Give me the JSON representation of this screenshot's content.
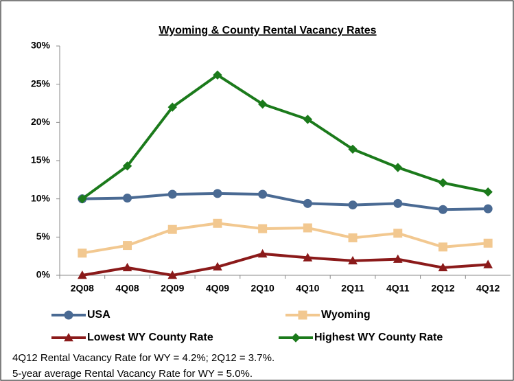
{
  "chart_data": {
    "type": "line",
    "title": "Wyoming & County Rental Vacancy Rates",
    "categories": [
      "2Q08",
      "4Q08",
      "2Q09",
      "4Q09",
      "2Q10",
      "4Q10",
      "2Q11",
      "4Q11",
      "2Q12",
      "4Q12"
    ],
    "series": [
      {
        "name": "USA",
        "color": "#4a6a93",
        "marker": "circle",
        "values": [
          10.0,
          10.1,
          10.6,
          10.7,
          10.6,
          9.4,
          9.2,
          9.4,
          8.6,
          8.7
        ]
      },
      {
        "name": "Wyoming",
        "color": "#f2c890",
        "marker": "square",
        "values": [
          2.9,
          3.9,
          6.0,
          6.8,
          6.1,
          6.2,
          4.9,
          5.5,
          3.7,
          4.2
        ]
      },
      {
        "name": "Lowest WY County Rate",
        "color": "#8b1a1a",
        "marker": "triangle",
        "values": [
          0,
          1.0,
          0,
          1.1,
          2.8,
          2.3,
          1.9,
          2.1,
          1.0,
          1.4
        ]
      },
      {
        "name": "Highest WY County Rate",
        "color": "#1b7a1b",
        "marker": "diamond",
        "values": [
          10.0,
          14.3,
          22.0,
          26.2,
          22.4,
          20.4,
          16.5,
          14.1,
          12.1,
          10.9
        ]
      }
    ],
    "ylim": [
      0,
      30
    ],
    "yticks": [
      {
        "value": 0,
        "label": "0%"
      },
      {
        "value": 5,
        "label": "5%"
      },
      {
        "value": 10,
        "label": "10%"
      },
      {
        "value": 15,
        "label": "15%"
      },
      {
        "value": 20,
        "label": "20%"
      },
      {
        "value": 25,
        "label": "25%"
      },
      {
        "value": 30,
        "label": "30%"
      }
    ],
    "grid": false,
    "legend": "bottom",
    "notes": [
      "4Q12 Rental Vacancy Rate for WY = 4.2%; 2Q12 = 3.7%.",
      "5-year average Rental Vacancy Rate for WY = 5.0%."
    ]
  }
}
